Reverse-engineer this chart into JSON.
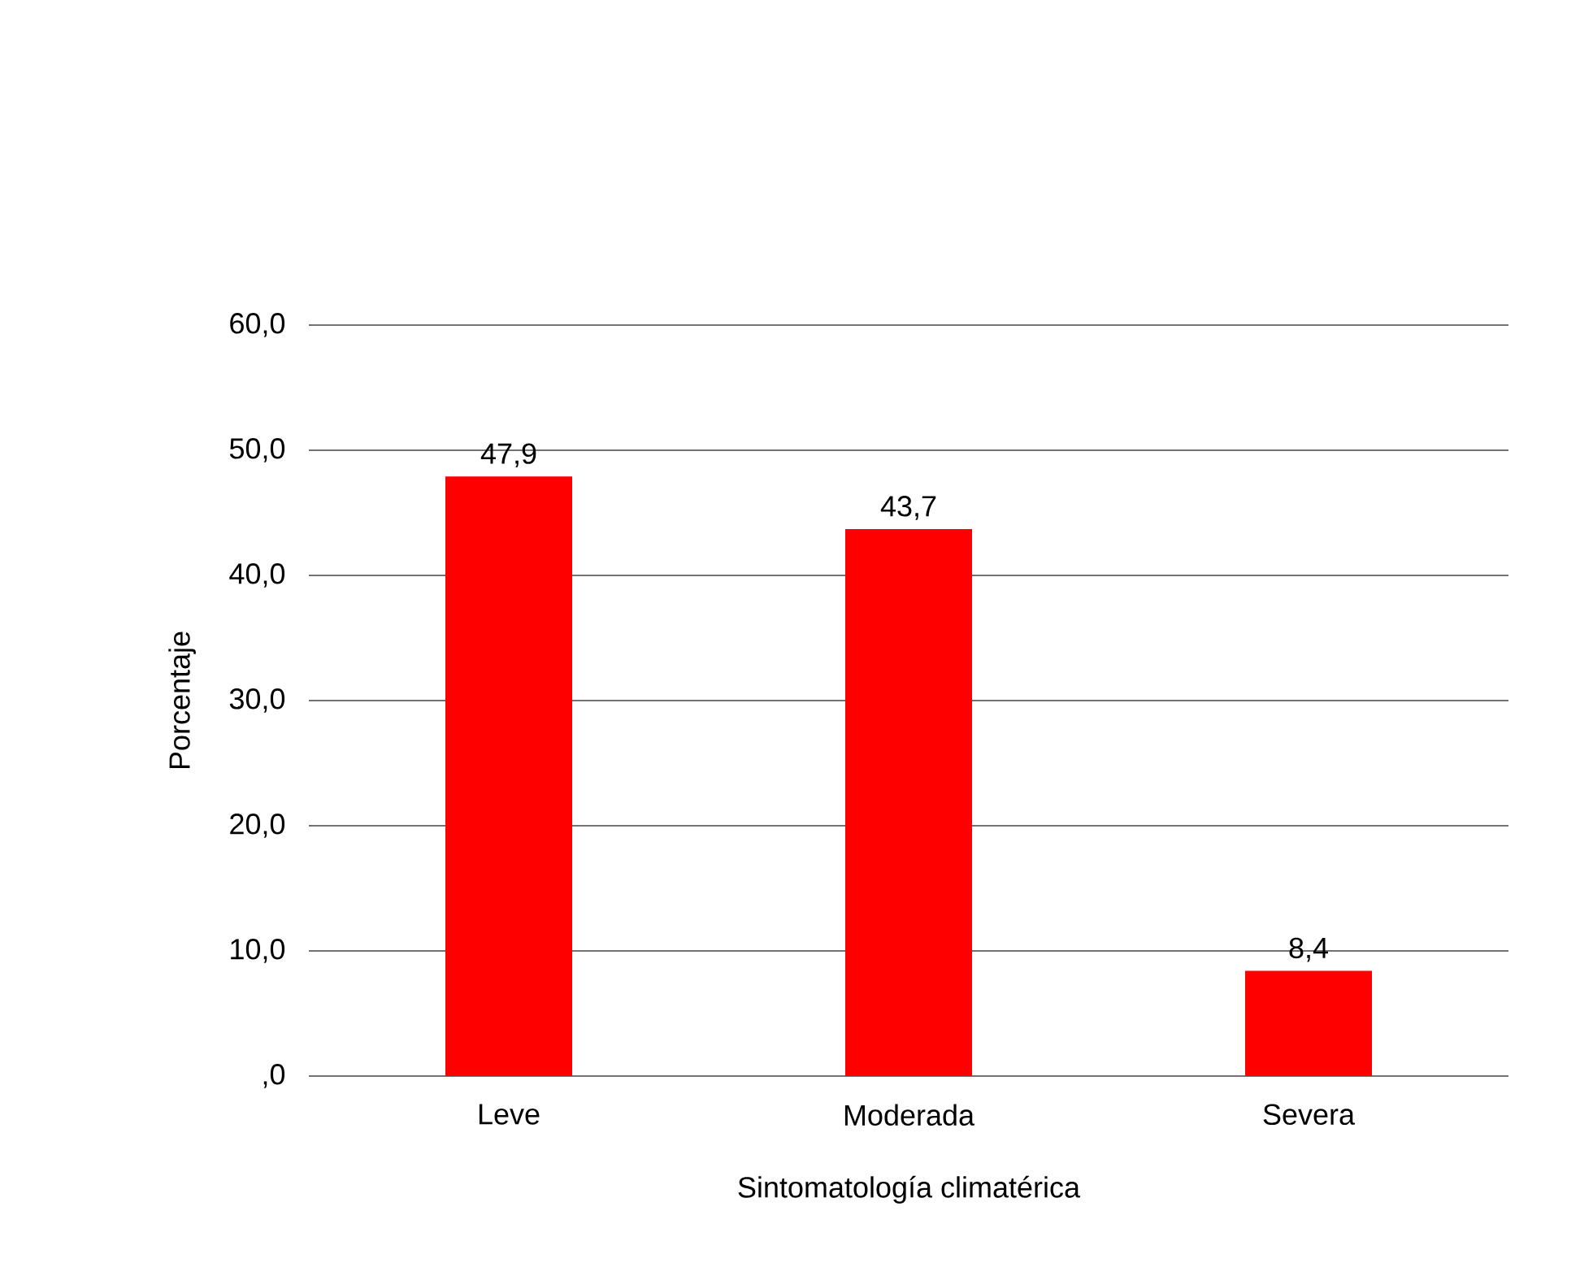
{
  "chart_data": {
    "type": "bar",
    "xlabel": "Sintomatología climatérica",
    "ylabel": "Porcentaje",
    "categories": [
      "Leve",
      "Moderada",
      "Severa"
    ],
    "values": [
      47.9,
      43.7,
      8.4
    ],
    "value_labels": [
      "47,9",
      "43,7",
      "8,4"
    ],
    "color": "#ff0000",
    "ylim": [
      0,
      60
    ],
    "yticks": [
      {
        "value": 0,
        "label": ",0"
      },
      {
        "value": 10,
        "label": "10,0"
      },
      {
        "value": 20,
        "label": "20,0"
      },
      {
        "value": 30,
        "label": "30,0"
      },
      {
        "value": 40,
        "label": "40,0"
      },
      {
        "value": 50,
        "label": "50,0"
      },
      {
        "value": 60,
        "label": "60,0"
      }
    ],
    "grid": "y"
  }
}
